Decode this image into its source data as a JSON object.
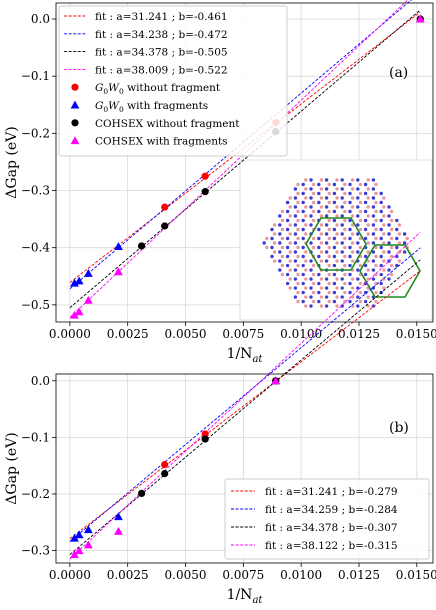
{
  "chart_data": [
    {
      "type": "scatter",
      "panel_label": "(a)",
      "xlabel_main": "1/N",
      "xlabel_sub": "at",
      "ylabel_main": "ΔGap (eV)",
      "xlim": [
        -0.0006,
        0.0157
      ],
      "ylim": [
        -0.53,
        0.028
      ],
      "xticks": [
        0.0,
        0.0025,
        0.005,
        0.0075,
        0.01,
        0.0125,
        0.015
      ],
      "xtick_labels": [
        "0.0000",
        "0.0025",
        "0.0050",
        "0.0075",
        "0.0100",
        "0.0125",
        "0.0150"
      ],
      "yticks": [
        0.0,
        -0.1,
        -0.2,
        -0.3,
        -0.4,
        -0.5
      ],
      "ytick_labels": [
        "0.0",
        "−0.1",
        "−0.2",
        "−0.3",
        "−0.4",
        "−0.5"
      ],
      "grid": true,
      "legend_position": "top-left",
      "fits": [
        {
          "label": "fit :  a=31.241 ; b=-0.461",
          "a": 31.241,
          "b": -0.461,
          "x_start": 0.0,
          "color": "#ff0000"
        },
        {
          "label": "fit :  a=34.238 ; b=-0.472",
          "a": 34.238,
          "b": -0.472,
          "x_start": 0.0,
          "color": "#0000ff"
        },
        {
          "label": "fit :  a=34.378 ; b=-0.505",
          "a": 34.378,
          "b": -0.505,
          "x_start": 0.0,
          "color": "#000000"
        },
        {
          "label": "fit :  a=38.009 ; b=-0.522",
          "a": 38.009,
          "b": -0.522,
          "x_start": 0.0,
          "color": "#ff00ff"
        }
      ],
      "series": [
        {
          "name_main": "G",
          "name_sub1": "0",
          "name_mid": "W",
          "name_sub2": "0",
          "name_rest": " without fragment",
          "marker": "circle",
          "color": "#ff0000",
          "x": [
            0.0041,
            0.00585,
            0.0089,
            0.01515
          ],
          "y": [
            -0.329,
            -0.275,
            -0.181,
            0.0
          ]
        },
        {
          "name_main": "G",
          "name_sub1": "0",
          "name_mid": "W",
          "name_sub2": "0",
          "name_rest": " with fragments",
          "marker": "triangle",
          "color": "#0000ff",
          "x": [
            0.0002,
            0.0004,
            0.0008,
            0.0021,
            0.01515
          ],
          "y": [
            -0.462,
            -0.458,
            -0.445,
            -0.398,
            0.0
          ]
        },
        {
          "name_main": "COHSEX without fragment",
          "marker": "circle",
          "color": "#000000",
          "x": [
            0.0031,
            0.0041,
            0.00585,
            0.0089,
            0.01515
          ],
          "y": [
            -0.397,
            -0.362,
            -0.302,
            -0.197,
            0.0
          ]
        },
        {
          "name_main": "COHSEX with fragments",
          "marker": "triangle",
          "color": "#ff00ff",
          "x": [
            0.0002,
            0.0004,
            0.0008,
            0.0021,
            0.01515
          ],
          "y": [
            -0.518,
            -0.512,
            -0.492,
            -0.442,
            0.0
          ]
        }
      ],
      "inset": "molecular-cluster-inset"
    },
    {
      "type": "scatter",
      "panel_label": "(b)",
      "xlabel_main": "1/N",
      "xlabel_sub": "at",
      "ylabel_main": "ΔGap (eV)",
      "xlim": [
        -0.0006,
        0.0157
      ],
      "ylim": [
        -0.322,
        0.012
      ],
      "xticks": [
        0.0,
        0.0025,
        0.005,
        0.0075,
        0.01,
        0.0125,
        0.015
      ],
      "xtick_labels": [
        "0.0000",
        "0.0025",
        "0.0050",
        "0.0075",
        "0.0100",
        "0.0125",
        "0.0150"
      ],
      "yticks": [
        0.0,
        -0.1,
        -0.2,
        -0.3
      ],
      "ytick_labels": [
        "0.0",
        "−0.1",
        "−0.2",
        "−0.3"
      ],
      "grid": true,
      "legend_position": "bottom-right",
      "fits": [
        {
          "label": "fit :  a=31.241 ; b=-0.279",
          "a": 31.241,
          "b": -0.279,
          "x_start": 0.0,
          "color": "#ff0000"
        },
        {
          "label": "fit :  a=34.259 ; b=-0.284",
          "a": 34.259,
          "b": -0.284,
          "x_start": 0.0,
          "color": "#0000ff"
        },
        {
          "label": "fit :  a=34.378 ; b=-0.307",
          "a": 34.378,
          "b": -0.307,
          "x_start": 0.0,
          "color": "#000000"
        },
        {
          "label": "fit :  a=38.122 ; b=-0.315",
          "a": 38.122,
          "b": -0.315,
          "x_start": 0.0,
          "color": "#ff00ff"
        }
      ],
      "series": [
        {
          "marker": "circle",
          "color": "#ff0000",
          "x": [
            0.0041,
            0.00585,
            0.0089
          ],
          "y": [
            -0.148,
            -0.094,
            0.0
          ]
        },
        {
          "marker": "triangle",
          "color": "#0000ff",
          "x": [
            0.0002,
            0.0004,
            0.0008,
            0.0021,
            0.0089
          ],
          "y": [
            -0.278,
            -0.272,
            -0.263,
            -0.24,
            0.0
          ]
        },
        {
          "marker": "circle",
          "color": "#000000",
          "x": [
            0.0031,
            0.0041,
            0.00585,
            0.0089
          ],
          "y": [
            -0.199,
            -0.164,
            -0.103,
            0.0
          ]
        },
        {
          "marker": "triangle",
          "color": "#ff00ff",
          "x": [
            0.0002,
            0.0004,
            0.0008,
            0.0021,
            0.0089
          ],
          "y": [
            -0.307,
            -0.3,
            -0.29,
            -0.266,
            0.0
          ]
        }
      ]
    }
  ]
}
